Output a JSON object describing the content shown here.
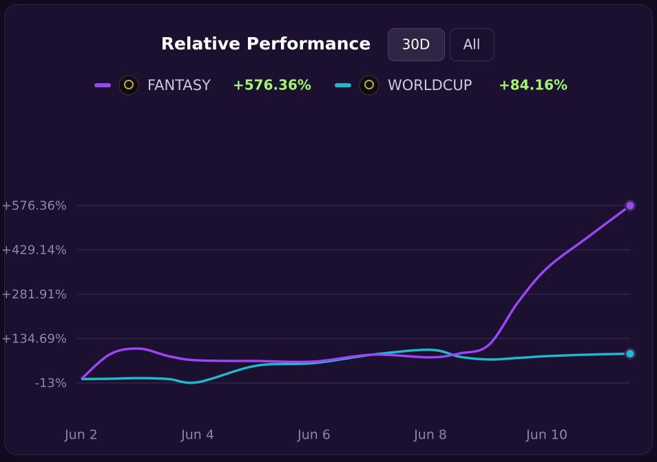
{
  "chart_data": {
    "type": "line",
    "title": "Relative Performance",
    "buttons": [
      "30D",
      "All"
    ],
    "active_button": 0,
    "x": [
      2,
      2.5,
      3,
      3.5,
      4,
      5,
      6,
      7,
      8,
      8.5,
      9,
      9.5,
      10,
      10.7,
      11.43
    ],
    "xlim": [
      2,
      11.43
    ],
    "xticks": [
      {
        "value": 2,
        "label": "Jun 2"
      },
      {
        "value": 4,
        "label": "Jun 4"
      },
      {
        "value": 6,
        "label": "Jun 6"
      },
      {
        "value": 8,
        "label": "Jun 8"
      },
      {
        "value": 10,
        "label": "Jun 10"
      }
    ],
    "ylim": [
      -13,
      576.36
    ],
    "yticks": [
      {
        "value": -13,
        "label": "-13%"
      },
      {
        "value": 134.69,
        "label": "+134.69%"
      },
      {
        "value": 281.91,
        "label": "+281.91%"
      },
      {
        "value": 429.14,
        "label": "+429.14%"
      },
      {
        "value": 576.36,
        "label": "+576.36%"
      }
    ],
    "grid": true,
    "series": [
      {
        "name": "FANTASY",
        "color": "#9b45f5",
        "change_label": "+576.36%",
        "values": [
          0,
          83,
          101,
          76,
          62,
          60,
          58,
          81,
          72,
          85,
          113,
          254,
          368,
          471,
          576.36
        ]
      },
      {
        "name": "WORLDCUP",
        "color": "#1fb9c9",
        "change_label": "+84.16%",
        "values": [
          0,
          1,
          3,
          0,
          -10.7,
          44,
          53,
          81,
          97,
          74,
          65,
          70,
          76,
          81,
          84.16
        ]
      }
    ]
  }
}
